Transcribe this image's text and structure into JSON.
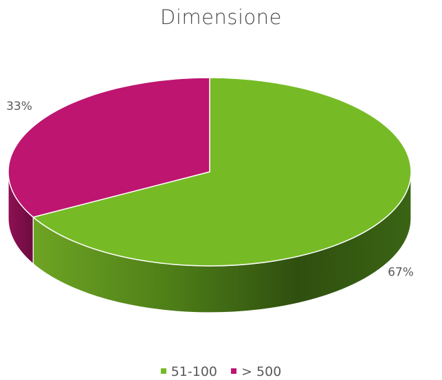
{
  "chart_data": {
    "type": "pie",
    "title": "Dimensione",
    "categories": [
      "51-100",
      "> 500"
    ],
    "values": [
      67,
      33
    ],
    "value_labels": [
      "67%",
      "33%"
    ],
    "colors": [
      "#76BB26",
      "#BD1570"
    ],
    "legend_position": "bottom",
    "style": "3d"
  }
}
